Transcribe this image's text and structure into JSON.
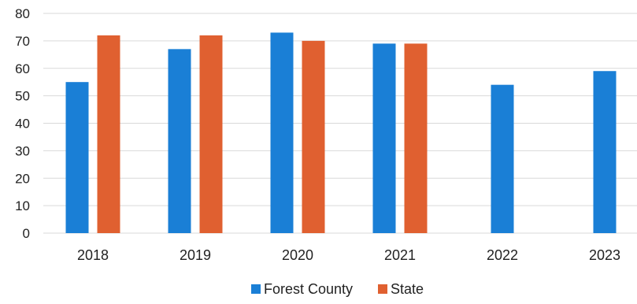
{
  "chart_data": {
    "type": "bar",
    "categories": [
      "2018",
      "2019",
      "2020",
      "2021",
      "2022",
      "2023"
    ],
    "series": [
      {
        "name": "Forest County",
        "values": [
          55,
          67,
          73,
          69,
          54,
          59
        ]
      },
      {
        "name": "State",
        "values": [
          72,
          72,
          70,
          69,
          null,
          null
        ]
      }
    ],
    "ylim": [
      0,
      80
    ],
    "yticks": [
      "0",
      "10",
      "20",
      "30",
      "40",
      "50",
      "60",
      "70",
      "80"
    ],
    "grid": true,
    "legend": "bottom",
    "title": "",
    "xlabel": "",
    "ylabel": "",
    "colors": {
      "Forest County": "#1a7fd6",
      "State": "#e06030",
      "grid": "#d9d9d9"
    }
  }
}
